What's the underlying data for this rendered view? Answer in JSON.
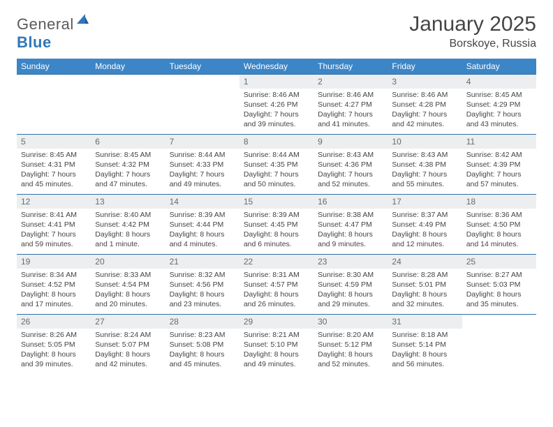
{
  "brand": {
    "word1": "General",
    "word2": "Blue"
  },
  "title": "January 2025",
  "location": "Borskoye, Russia",
  "colors": {
    "header_bg": "#3c85c6",
    "header_text": "#ffffff",
    "row_divider": "#2f6fa8",
    "daynum_bg": "#eceeef",
    "daynum_text": "#6a6a6a",
    "body_text": "#444444",
    "brand_gray": "#5a5a5a",
    "brand_blue": "#2f77bb"
  },
  "day_headers": [
    "Sunday",
    "Monday",
    "Tuesday",
    "Wednesday",
    "Thursday",
    "Friday",
    "Saturday"
  ],
  "weeks": [
    [
      {
        "n": "",
        "sr": "",
        "ss": "",
        "dl": ""
      },
      {
        "n": "",
        "sr": "",
        "ss": "",
        "dl": ""
      },
      {
        "n": "",
        "sr": "",
        "ss": "",
        "dl": ""
      },
      {
        "n": "1",
        "sr": "Sunrise: 8:46 AM",
        "ss": "Sunset: 4:26 PM",
        "dl": "Daylight: 7 hours and 39 minutes."
      },
      {
        "n": "2",
        "sr": "Sunrise: 8:46 AM",
        "ss": "Sunset: 4:27 PM",
        "dl": "Daylight: 7 hours and 41 minutes."
      },
      {
        "n": "3",
        "sr": "Sunrise: 8:46 AM",
        "ss": "Sunset: 4:28 PM",
        "dl": "Daylight: 7 hours and 42 minutes."
      },
      {
        "n": "4",
        "sr": "Sunrise: 8:45 AM",
        "ss": "Sunset: 4:29 PM",
        "dl": "Daylight: 7 hours and 43 minutes."
      }
    ],
    [
      {
        "n": "5",
        "sr": "Sunrise: 8:45 AM",
        "ss": "Sunset: 4:31 PM",
        "dl": "Daylight: 7 hours and 45 minutes."
      },
      {
        "n": "6",
        "sr": "Sunrise: 8:45 AM",
        "ss": "Sunset: 4:32 PM",
        "dl": "Daylight: 7 hours and 47 minutes."
      },
      {
        "n": "7",
        "sr": "Sunrise: 8:44 AM",
        "ss": "Sunset: 4:33 PM",
        "dl": "Daylight: 7 hours and 49 minutes."
      },
      {
        "n": "8",
        "sr": "Sunrise: 8:44 AM",
        "ss": "Sunset: 4:35 PM",
        "dl": "Daylight: 7 hours and 50 minutes."
      },
      {
        "n": "9",
        "sr": "Sunrise: 8:43 AM",
        "ss": "Sunset: 4:36 PM",
        "dl": "Daylight: 7 hours and 52 minutes."
      },
      {
        "n": "10",
        "sr": "Sunrise: 8:43 AM",
        "ss": "Sunset: 4:38 PM",
        "dl": "Daylight: 7 hours and 55 minutes."
      },
      {
        "n": "11",
        "sr": "Sunrise: 8:42 AM",
        "ss": "Sunset: 4:39 PM",
        "dl": "Daylight: 7 hours and 57 minutes."
      }
    ],
    [
      {
        "n": "12",
        "sr": "Sunrise: 8:41 AM",
        "ss": "Sunset: 4:41 PM",
        "dl": "Daylight: 7 hours and 59 minutes."
      },
      {
        "n": "13",
        "sr": "Sunrise: 8:40 AM",
        "ss": "Sunset: 4:42 PM",
        "dl": "Daylight: 8 hours and 1 minute."
      },
      {
        "n": "14",
        "sr": "Sunrise: 8:39 AM",
        "ss": "Sunset: 4:44 PM",
        "dl": "Daylight: 8 hours and 4 minutes."
      },
      {
        "n": "15",
        "sr": "Sunrise: 8:39 AM",
        "ss": "Sunset: 4:45 PM",
        "dl": "Daylight: 8 hours and 6 minutes."
      },
      {
        "n": "16",
        "sr": "Sunrise: 8:38 AM",
        "ss": "Sunset: 4:47 PM",
        "dl": "Daylight: 8 hours and 9 minutes."
      },
      {
        "n": "17",
        "sr": "Sunrise: 8:37 AM",
        "ss": "Sunset: 4:49 PM",
        "dl": "Daylight: 8 hours and 12 minutes."
      },
      {
        "n": "18",
        "sr": "Sunrise: 8:36 AM",
        "ss": "Sunset: 4:50 PM",
        "dl": "Daylight: 8 hours and 14 minutes."
      }
    ],
    [
      {
        "n": "19",
        "sr": "Sunrise: 8:34 AM",
        "ss": "Sunset: 4:52 PM",
        "dl": "Daylight: 8 hours and 17 minutes."
      },
      {
        "n": "20",
        "sr": "Sunrise: 8:33 AM",
        "ss": "Sunset: 4:54 PM",
        "dl": "Daylight: 8 hours and 20 minutes."
      },
      {
        "n": "21",
        "sr": "Sunrise: 8:32 AM",
        "ss": "Sunset: 4:56 PM",
        "dl": "Daylight: 8 hours and 23 minutes."
      },
      {
        "n": "22",
        "sr": "Sunrise: 8:31 AM",
        "ss": "Sunset: 4:57 PM",
        "dl": "Daylight: 8 hours and 26 minutes."
      },
      {
        "n": "23",
        "sr": "Sunrise: 8:30 AM",
        "ss": "Sunset: 4:59 PM",
        "dl": "Daylight: 8 hours and 29 minutes."
      },
      {
        "n": "24",
        "sr": "Sunrise: 8:28 AM",
        "ss": "Sunset: 5:01 PM",
        "dl": "Daylight: 8 hours and 32 minutes."
      },
      {
        "n": "25",
        "sr": "Sunrise: 8:27 AM",
        "ss": "Sunset: 5:03 PM",
        "dl": "Daylight: 8 hours and 35 minutes."
      }
    ],
    [
      {
        "n": "26",
        "sr": "Sunrise: 8:26 AM",
        "ss": "Sunset: 5:05 PM",
        "dl": "Daylight: 8 hours and 39 minutes."
      },
      {
        "n": "27",
        "sr": "Sunrise: 8:24 AM",
        "ss": "Sunset: 5:07 PM",
        "dl": "Daylight: 8 hours and 42 minutes."
      },
      {
        "n": "28",
        "sr": "Sunrise: 8:23 AM",
        "ss": "Sunset: 5:08 PM",
        "dl": "Daylight: 8 hours and 45 minutes."
      },
      {
        "n": "29",
        "sr": "Sunrise: 8:21 AM",
        "ss": "Sunset: 5:10 PM",
        "dl": "Daylight: 8 hours and 49 minutes."
      },
      {
        "n": "30",
        "sr": "Sunrise: 8:20 AM",
        "ss": "Sunset: 5:12 PM",
        "dl": "Daylight: 8 hours and 52 minutes."
      },
      {
        "n": "31",
        "sr": "Sunrise: 8:18 AM",
        "ss": "Sunset: 5:14 PM",
        "dl": "Daylight: 8 hours and 56 minutes."
      },
      {
        "n": "",
        "sr": "",
        "ss": "",
        "dl": ""
      }
    ]
  ]
}
